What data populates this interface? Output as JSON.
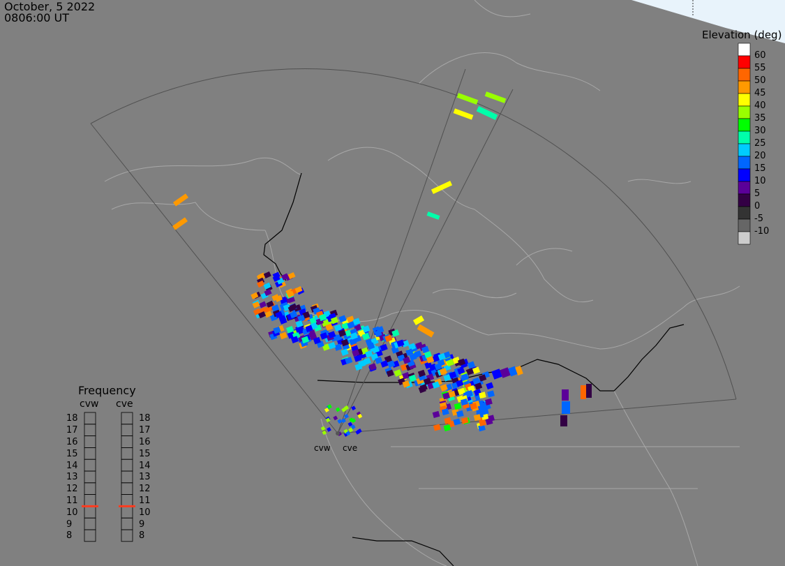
{
  "header": {
    "date": "October, 5 2022",
    "time": "0806:00 UT"
  },
  "colors": {
    "background": "#808080",
    "land_lines": "#a8a8a8",
    "border_lines": "#000000",
    "fov_lines": "#505050",
    "frequency_marker": "#ff3b1f"
  },
  "elevation_scale": {
    "title": "Elevation (deg)",
    "levels": [
      {
        "label": "60",
        "color": "#ffffff"
      },
      {
        "label": "55",
        "color": "#ff0000"
      },
      {
        "label": "50",
        "color": "#ff6600"
      },
      {
        "label": "45",
        "color": "#ff9900"
      },
      {
        "label": "40",
        "color": "#ffff00"
      },
      {
        "label": "35",
        "color": "#99ff00"
      },
      {
        "label": "30",
        "color": "#00ff00"
      },
      {
        "label": "25",
        "color": "#00ffaa"
      },
      {
        "label": "20",
        "color": "#00ccff"
      },
      {
        "label": "15",
        "color": "#0066ff"
      },
      {
        "label": "10",
        "color": "#0000ff"
      },
      {
        "label": "5",
        "color": "#5b0099"
      },
      {
        "label": "0",
        "color": "#330044"
      },
      {
        "label": "-5",
        "color": "#333333"
      },
      {
        "label": "-10",
        "color": "#666666"
      },
      {
        "label": "",
        "color": "#cccccc"
      }
    ]
  },
  "frequency": {
    "title": "Frequency",
    "radars": [
      {
        "name": "cvw",
        "value_mhz": 11
      },
      {
        "name": "cve",
        "value_mhz": 11
      }
    ],
    "scale": [
      "18",
      "17",
      "16",
      "15",
      "14",
      "13",
      "12",
      "11",
      "10",
      "9",
      "8"
    ]
  },
  "sites": [
    {
      "name": "cvw"
    },
    {
      "name": "cve"
    }
  ]
}
